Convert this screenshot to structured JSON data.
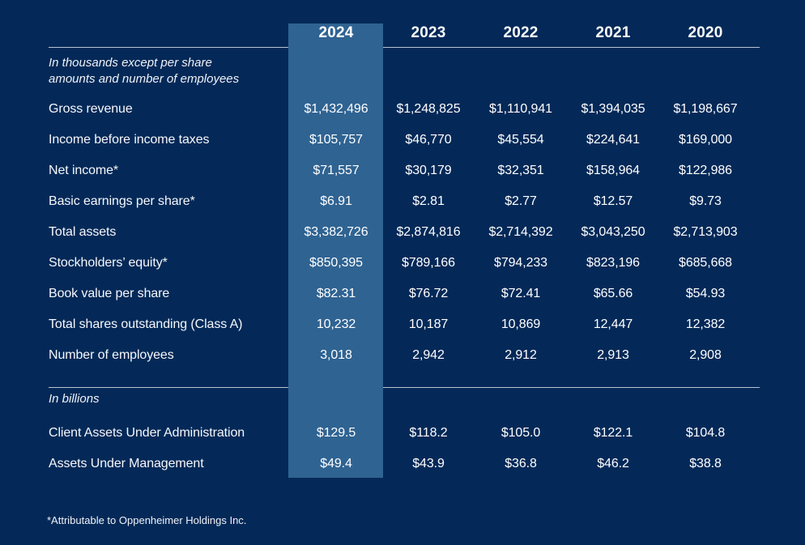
{
  "colors": {
    "background": "#042958",
    "highlight_column": "#2f6392",
    "text": "#ffffff",
    "divider_line": "#b9c3d2"
  },
  "table": {
    "years": [
      "2024",
      "2023",
      "2022",
      "2021",
      "2020"
    ],
    "highlighted_year": "2024",
    "units_note_line1": "In thousands except per share",
    "units_note_line2": "amounts and number of employees",
    "rows": [
      {
        "label": "Gross revenue",
        "values": [
          "$1,432,496",
          "$1,248,825",
          "$1,110,941",
          "$1,394,035",
          "$1,198,667"
        ]
      },
      {
        "label": "Income before income taxes",
        "values": [
          "$105,757",
          "$46,770",
          "$45,554",
          "$224,641",
          "$169,000"
        ]
      },
      {
        "label": "Net income*",
        "values": [
          "$71,557",
          "$30,179",
          "$32,351",
          "$158,964",
          "$122,986"
        ]
      },
      {
        "label": "Basic earnings per share*",
        "values": [
          "$6.91",
          "$2.81",
          "$2.77",
          "$12.57",
          "$9.73"
        ]
      },
      {
        "label": "Total assets",
        "values": [
          "$3,382,726",
          "$2,874,816",
          "$2,714,392",
          "$3,043,250",
          "$2,713,903"
        ]
      },
      {
        "label": "Stockholders’ equity*",
        "values": [
          "$850,395",
          "$789,166",
          "$794,233",
          "$823,196",
          "$685,668"
        ]
      },
      {
        "label": "Book value per share",
        "values": [
          "$82.31",
          "$76.72",
          "$72.41",
          "$65.66",
          "$54.93"
        ]
      },
      {
        "label": "Total shares outstanding (Class A)",
        "values": [
          "10,232",
          "10,187",
          "10,869",
          "12,447",
          "12,382"
        ]
      },
      {
        "label": "Number of employees",
        "values": [
          "3,018",
          "2,942",
          "2,912",
          "2,913",
          "2,908"
        ]
      }
    ],
    "units_note_2": "In billions",
    "rows_billions": [
      {
        "label": "Client Assets Under Administration",
        "values": [
          "$129.5",
          "$118.2",
          "$105.0",
          "$122.1",
          "$104.8"
        ]
      },
      {
        "label": "Assets Under Management",
        "values": [
          "$49.4",
          "$43.9",
          "$36.8",
          "$46.2",
          "$38.8"
        ]
      }
    ],
    "footnote": "*Attributable to Oppenheimer Holdings Inc."
  }
}
